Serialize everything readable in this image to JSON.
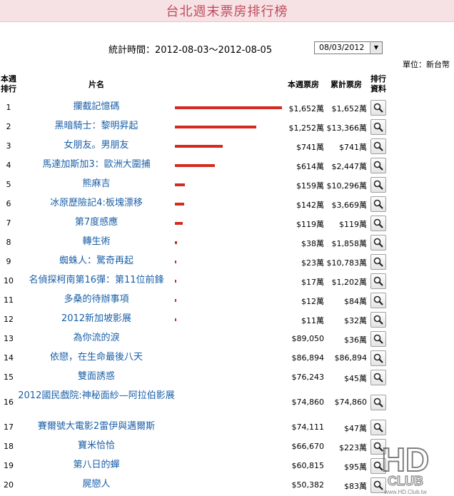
{
  "title": "台北週末票房排行榜",
  "stat_label": "統計時間：2012-08-03～2012-08-05",
  "date_select": {
    "value": "08/03/2012"
  },
  "unit": "單位：新台幣",
  "headers": {
    "rank_l1": "本週",
    "rank_l2": "排行",
    "name": "片名",
    "week": "本週票房",
    "total": "累計票房",
    "info_l1": "排行",
    "info_l2": "資料"
  },
  "rows": [
    {
      "rank": "1",
      "name": "攔截記憶碼",
      "week": "$1,652萬",
      "total": "$1,652萬",
      "bar": 1.0
    },
    {
      "rank": "2",
      "name": "黑暗騎士：黎明昇起",
      "week": "$1,252萬",
      "total": "$13,366萬",
      "bar": 0.758
    },
    {
      "rank": "3",
      "name": "女朋友。男朋友",
      "week": "$741萬",
      "total": "$741萬",
      "bar": 0.449
    },
    {
      "rank": "4",
      "name": "馬達加斯加3：歐洲大圍捕",
      "week": "$614萬",
      "total": "$2,447萬",
      "bar": 0.372
    },
    {
      "rank": "5",
      "name": "熊麻吉",
      "week": "$159萬",
      "total": "$10,296萬",
      "bar": 0.096
    },
    {
      "rank": "6",
      "name": "冰原歷險記4:板塊漂移",
      "week": "$142萬",
      "total": "$3,669萬",
      "bar": 0.086
    },
    {
      "rank": "7",
      "name": "第7度感應",
      "week": "$119萬",
      "total": "$119萬",
      "bar": 0.072
    },
    {
      "rank": "8",
      "name": "轉生術",
      "week": "$38萬",
      "total": "$1,858萬",
      "bar": 0.023
    },
    {
      "rank": "9",
      "name": "蜘蛛人：驚奇再起",
      "week": "$23萬",
      "total": "$10,783萬",
      "bar": 0.014
    },
    {
      "rank": "10",
      "name": "名偵探柯南第16彈：第11位前鋒",
      "week": "$17萬",
      "total": "$1,202萬",
      "bar": 0.01
    },
    {
      "rank": "11",
      "name": "多桑的待辦事項",
      "week": "$12萬",
      "total": "$84萬",
      "bar": 0.007
    },
    {
      "rank": "12",
      "name": "2012新加坡影展",
      "week": "$11萬",
      "total": "$32萬",
      "bar": 0.007
    },
    {
      "rank": "13",
      "name": "為你流的淚",
      "week": "$89,050",
      "total": "$36萬",
      "bar": 0
    },
    {
      "rank": "14",
      "name": "依戀，在生命最後八天",
      "week": "$86,894",
      "total": "$86,894",
      "bar": 0
    },
    {
      "rank": "15",
      "name": "雙面誘惑",
      "week": "$76,243",
      "total": "$45萬",
      "bar": 0
    },
    {
      "rank": "16",
      "name": "2012國民戲院:神秘面紗—阿拉伯影展",
      "week": "$74,860",
      "total": "$74,860",
      "bar": 0
    },
    {
      "rank": "17",
      "name": "賽爾號大電影2雷伊與邁爾斯",
      "week": "$74,111",
      "total": "$47萬",
      "bar": 0
    },
    {
      "rank": "18",
      "name": "寶米恰恰",
      "week": "$66,670",
      "total": "$223萬",
      "bar": 0
    },
    {
      "rank": "19",
      "name": "第八日的蟬",
      "week": "$60,815",
      "total": "$95萬",
      "bar": 0
    },
    {
      "rank": "20",
      "name": "屍戀人",
      "week": "$50,382",
      "total": "$83萬",
      "bar": 0
    }
  ],
  "colors": {
    "bar": "#d42a1f",
    "link": "#1a5fa8",
    "title": "#c04a5c",
    "title_bg": "#f6e2e4"
  },
  "icons": {
    "detail": "magnifier-icon",
    "dropdown": "dropdown-arrow-icon"
  },
  "watermark": "www.HD.Club.tw"
}
